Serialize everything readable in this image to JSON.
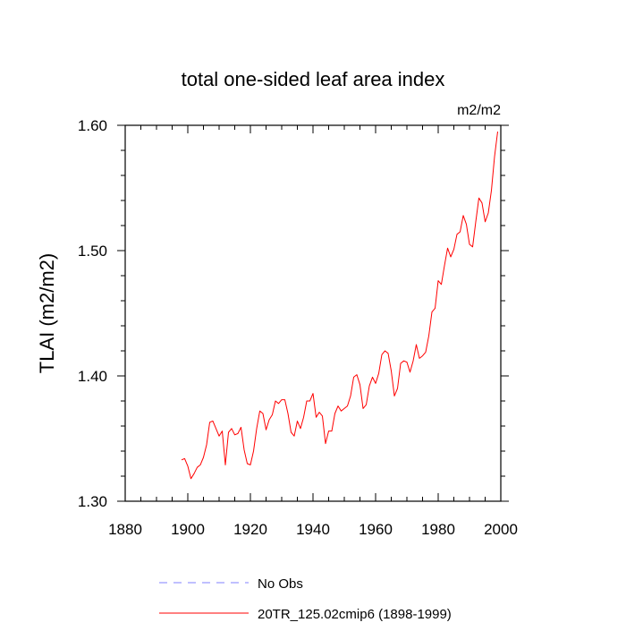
{
  "chart_data": {
    "type": "line",
    "title": "total one-sided leaf area index",
    "units_label": "m2/m2",
    "ylabel": "TLAI  (m2/m2)",
    "xlabel": "",
    "xlim": [
      1880,
      2000
    ],
    "ylim": [
      1.3,
      1.6
    ],
    "xticks": [
      1880,
      1900,
      1920,
      1940,
      1960,
      1980,
      2000
    ],
    "yticks": [
      "1.30",
      "1.40",
      "1.50",
      "1.60"
    ],
    "legend": {
      "placement": "bottom",
      "entries": [
        {
          "label": "No Obs",
          "color": "#8080ff",
          "style": "dashed"
        },
        {
          "label": "20TR_125.02cmip6 (1898-1999)",
          "color": "#ff0000",
          "style": "solid"
        }
      ]
    },
    "series": [
      {
        "name": "20TR_125.02cmip6 (1898-1999)",
        "color": "#ff0000",
        "x": [
          1898,
          1899,
          1900,
          1901,
          1902,
          1903,
          1904,
          1905,
          1906,
          1907,
          1908,
          1909,
          1910,
          1911,
          1912,
          1913,
          1914,
          1915,
          1916,
          1917,
          1918,
          1919,
          1920,
          1921,
          1922,
          1923,
          1924,
          1925,
          1926,
          1927,
          1928,
          1929,
          1930,
          1931,
          1932,
          1933,
          1934,
          1935,
          1936,
          1937,
          1938,
          1939,
          1940,
          1941,
          1942,
          1943,
          1944,
          1945,
          1946,
          1947,
          1948,
          1949,
          1950,
          1951,
          1952,
          1953,
          1954,
          1955,
          1956,
          1957,
          1958,
          1959,
          1960,
          1961,
          1962,
          1963,
          1964,
          1965,
          1966,
          1967,
          1968,
          1969,
          1970,
          1971,
          1972,
          1973,
          1974,
          1975,
          1976,
          1977,
          1978,
          1979,
          1980,
          1981,
          1982,
          1983,
          1984,
          1985,
          1986,
          1987,
          1988,
          1989,
          1990,
          1991,
          1992,
          1993,
          1994,
          1995,
          1996,
          1997,
          1998,
          1999
        ],
        "values": [
          1.333,
          1.334,
          1.328,
          1.318,
          1.322,
          1.327,
          1.329,
          1.335,
          1.345,
          1.363,
          1.364,
          1.358,
          1.352,
          1.356,
          1.329,
          1.355,
          1.358,
          1.353,
          1.354,
          1.359,
          1.341,
          1.33,
          1.329,
          1.34,
          1.358,
          1.372,
          1.37,
          1.357,
          1.365,
          1.369,
          1.38,
          1.378,
          1.381,
          1.381,
          1.37,
          1.355,
          1.352,
          1.364,
          1.358,
          1.367,
          1.38,
          1.38,
          1.386,
          1.367,
          1.371,
          1.368,
          1.346,
          1.356,
          1.356,
          1.37,
          1.376,
          1.372,
          1.374,
          1.376,
          1.384,
          1.399,
          1.401,
          1.393,
          1.374,
          1.377,
          1.392,
          1.399,
          1.394,
          1.402,
          1.417,
          1.42,
          1.418,
          1.404,
          1.384,
          1.39,
          1.41,
          1.412,
          1.411,
          1.403,
          1.412,
          1.425,
          1.414,
          1.416,
          1.419,
          1.432,
          1.451,
          1.454,
          1.476,
          1.473,
          1.488,
          1.502,
          1.495,
          1.501,
          1.513,
          1.515,
          1.528,
          1.521,
          1.505,
          1.503,
          1.523,
          1.542,
          1.538,
          1.523,
          1.53,
          1.548,
          1.575,
          1.595
        ]
      }
    ]
  }
}
